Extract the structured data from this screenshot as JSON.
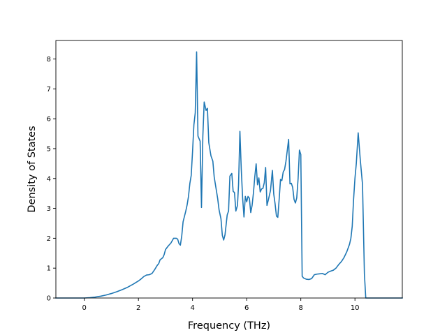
{
  "chart_data": {
    "type": "line",
    "title": "",
    "xlabel": "Frequency (THz)",
    "ylabel": "Density of States",
    "xlim": [
      -1.05,
      11.75
    ],
    "ylim": [
      0,
      8.62
    ],
    "xticks": [
      0,
      2,
      4,
      6,
      8,
      10
    ],
    "yticks": [
      0,
      1,
      2,
      3,
      4,
      5,
      6,
      7,
      8
    ],
    "grid": false,
    "legend": "none",
    "series": [
      {
        "color": "#1f77b4",
        "points": [
          [
            -1.05,
            0
          ],
          [
            -0.5,
            0
          ],
          [
            0,
            0
          ],
          [
            0.2,
            0.01
          ],
          [
            0.4,
            0.03
          ],
          [
            0.6,
            0.06
          ],
          [
            0.8,
            0.1
          ],
          [
            1.0,
            0.15
          ],
          [
            1.2,
            0.21
          ],
          [
            1.4,
            0.28
          ],
          [
            1.6,
            0.36
          ],
          [
            1.8,
            0.46
          ],
          [
            2.0,
            0.57
          ],
          [
            2.1,
            0.64
          ],
          [
            2.2,
            0.72
          ],
          [
            2.3,
            0.77
          ],
          [
            2.4,
            0.78
          ],
          [
            2.5,
            0.82
          ],
          [
            2.6,
            0.95
          ],
          [
            2.7,
            1.1
          ],
          [
            2.75,
            1.15
          ],
          [
            2.8,
            1.28
          ],
          [
            2.9,
            1.35
          ],
          [
            2.95,
            1.45
          ],
          [
            3.0,
            1.62
          ],
          [
            3.1,
            1.74
          ],
          [
            3.2,
            1.84
          ],
          [
            3.3,
            2.0
          ],
          [
            3.4,
            2.0
          ],
          [
            3.45,
            1.97
          ],
          [
            3.5,
            1.82
          ],
          [
            3.55,
            1.77
          ],
          [
            3.6,
            2.07
          ],
          [
            3.65,
            2.55
          ],
          [
            3.75,
            2.91
          ],
          [
            3.8,
            3.12
          ],
          [
            3.85,
            3.4
          ],
          [
            3.9,
            3.83
          ],
          [
            3.95,
            4.1
          ],
          [
            4.0,
            4.9
          ],
          [
            4.05,
            5.8
          ],
          [
            4.1,
            6.2
          ],
          [
            4.15,
            8.24
          ],
          [
            4.2,
            5.42
          ],
          [
            4.28,
            5.25
          ],
          [
            4.33,
            3.03
          ],
          [
            4.38,
            5.4
          ],
          [
            4.43,
            6.56
          ],
          [
            4.5,
            6.28
          ],
          [
            4.55,
            6.35
          ],
          [
            4.6,
            5.2
          ],
          [
            4.68,
            4.76
          ],
          [
            4.75,
            4.58
          ],
          [
            4.8,
            4.05
          ],
          [
            4.88,
            3.6
          ],
          [
            4.93,
            3.32
          ],
          [
            4.98,
            2.95
          ],
          [
            5.05,
            2.65
          ],
          [
            5.1,
            2.1
          ],
          [
            5.15,
            1.94
          ],
          [
            5.2,
            2.12
          ],
          [
            5.28,
            2.78
          ],
          [
            5.33,
            2.91
          ],
          [
            5.38,
            4.08
          ],
          [
            5.45,
            4.17
          ],
          [
            5.5,
            3.57
          ],
          [
            5.55,
            3.53
          ],
          [
            5.6,
            2.91
          ],
          [
            5.66,
            3.1
          ],
          [
            5.7,
            3.8
          ],
          [
            5.75,
            5.58
          ],
          [
            5.8,
            4.31
          ],
          [
            5.85,
            3.35
          ],
          [
            5.9,
            2.71
          ],
          [
            5.95,
            3.4
          ],
          [
            6.0,
            3.22
          ],
          [
            6.05,
            3.4
          ],
          [
            6.1,
            3.34
          ],
          [
            6.15,
            2.86
          ],
          [
            6.2,
            3.1
          ],
          [
            6.25,
            3.52
          ],
          [
            6.3,
            4.06
          ],
          [
            6.35,
            4.49
          ],
          [
            6.4,
            3.79
          ],
          [
            6.45,
            4.02
          ],
          [
            6.5,
            3.55
          ],
          [
            6.55,
            3.65
          ],
          [
            6.6,
            3.67
          ],
          [
            6.65,
            3.86
          ],
          [
            6.7,
            4.37
          ],
          [
            6.75,
            3.1
          ],
          [
            6.8,
            3.28
          ],
          [
            6.88,
            3.6
          ],
          [
            6.95,
            4.27
          ],
          [
            7.0,
            3.48
          ],
          [
            7.05,
            3.15
          ],
          [
            7.1,
            2.74
          ],
          [
            7.15,
            2.7
          ],
          [
            7.2,
            3.3
          ],
          [
            7.25,
            3.97
          ],
          [
            7.3,
            3.93
          ],
          [
            7.35,
            4.22
          ],
          [
            7.4,
            4.3
          ],
          [
            7.45,
            4.57
          ],
          [
            7.55,
            5.31
          ],
          [
            7.6,
            3.82
          ],
          [
            7.65,
            3.84
          ],
          [
            7.7,
            3.7
          ],
          [
            7.75,
            3.3
          ],
          [
            7.8,
            3.18
          ],
          [
            7.85,
            3.35
          ],
          [
            7.9,
            4.0
          ],
          [
            7.95,
            4.95
          ],
          [
            8.0,
            4.8
          ],
          [
            8.05,
            0.73
          ],
          [
            8.1,
            0.67
          ],
          [
            8.2,
            0.63
          ],
          [
            8.3,
            0.62
          ],
          [
            8.4,
            0.65
          ],
          [
            8.5,
            0.78
          ],
          [
            8.6,
            0.8
          ],
          [
            8.7,
            0.81
          ],
          [
            8.8,
            0.82
          ],
          [
            8.9,
            0.78
          ],
          [
            9.0,
            0.86
          ],
          [
            9.1,
            0.9
          ],
          [
            9.2,
            0.93
          ],
          [
            9.3,
            1.0
          ],
          [
            9.4,
            1.12
          ],
          [
            9.5,
            1.22
          ],
          [
            9.6,
            1.36
          ],
          [
            9.7,
            1.55
          ],
          [
            9.8,
            1.8
          ],
          [
            9.85,
            2.0
          ],
          [
            9.9,
            2.4
          ],
          [
            9.95,
            3.3
          ],
          [
            10.0,
            4.0
          ],
          [
            10.05,
            4.5
          ],
          [
            10.12,
            5.53
          ],
          [
            10.2,
            4.6
          ],
          [
            10.28,
            3.8
          ],
          [
            10.35,
            0.8
          ],
          [
            10.4,
            0
          ],
          [
            11.0,
            0
          ],
          [
            11.75,
            0
          ]
        ]
      }
    ]
  }
}
